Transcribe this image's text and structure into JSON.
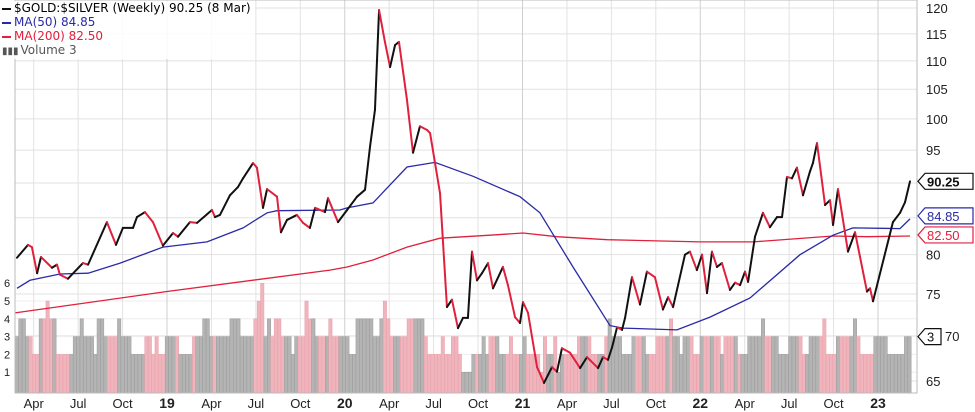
{
  "chart_data": {
    "type": "line",
    "title": "$GOLD:$SILVER (Weekly) 90.25 (8 Mar)",
    "x_units": "decimal year",
    "y_scale": "log",
    "ylim": [
      65,
      120
    ],
    "y_ticks": [
      "120",
      "115",
      "110",
      "105",
      "100",
      "95",
      "90",
      "85",
      "80",
      "75",
      "70",
      "65"
    ],
    "y_tick_values": [
      120,
      115,
      110,
      105,
      100,
      95,
      90,
      85,
      80,
      75,
      70,
      65
    ],
    "volume_ticks": [
      "1",
      "2",
      "3",
      "4",
      "5",
      "6"
    ],
    "volume_tick_values": [
      1,
      2,
      3,
      4,
      5,
      6
    ],
    "x_ticks": [
      {
        "label": "Apr",
        "t": 2018.25,
        "bold": false
      },
      {
        "label": "Jul",
        "t": 2018.5,
        "bold": false
      },
      {
        "label": "Oct",
        "t": 2018.75,
        "bold": false
      },
      {
        "label": "19",
        "t": 2019.0,
        "bold": true
      },
      {
        "label": "Apr",
        "t": 2019.25,
        "bold": false
      },
      {
        "label": "Jul",
        "t": 2019.5,
        "bold": false
      },
      {
        "label": "Oct",
        "t": 2019.75,
        "bold": false
      },
      {
        "label": "20",
        "t": 2020.0,
        "bold": true
      },
      {
        "label": "Apr",
        "t": 2020.25,
        "bold": false
      },
      {
        "label": "Jul",
        "t": 2020.5,
        "bold": false
      },
      {
        "label": "Oct",
        "t": 2020.75,
        "bold": false
      },
      {
        "label": "21",
        "t": 2021.0,
        "bold": true
      },
      {
        "label": "Apr",
        "t": 2021.25,
        "bold": false
      },
      {
        "label": "Jul",
        "t": 2021.5,
        "bold": false
      },
      {
        "label": "Oct",
        "t": 2021.75,
        "bold": false
      },
      {
        "label": "22",
        "t": 2022.0,
        "bold": true
      },
      {
        "label": "Apr",
        "t": 2022.25,
        "bold": false
      },
      {
        "label": "Jul",
        "t": 2022.5,
        "bold": false
      },
      {
        "label": "Oct",
        "t": 2022.75,
        "bold": false
      },
      {
        "label": "23",
        "t": 2023.0,
        "bold": true
      }
    ],
    "legend": {
      "price": "$GOLD:$SILVER (Weekly) 90.25 (8 Mar)",
      "ma50": "MA(50) 84.85",
      "ma200": "MA(200) 82.50",
      "volume": "Volume 3"
    },
    "last_tags": {
      "price": "90.25",
      "ma50": "84.85",
      "ma200": "82.50",
      "volume": "3"
    },
    "last_values": {
      "price": 90.25,
      "ma50": 84.85,
      "ma200": 82.5,
      "volume": 3
    },
    "colors": {
      "up": "#111111",
      "down": "#e0203c",
      "ma50": "#2a2aa8",
      "ma200": "#e0203c",
      "vol_up": "#b4b4b4",
      "vol_down": "#f0b4bc",
      "grid": "#e2e2e2"
    },
    "series": [
      {
        "name": "$GOLD:$SILVER",
        "points": [
          [
            2018.156,
            79.6
          ],
          [
            2018.218,
            81.3
          ],
          [
            2018.24,
            81.0
          ],
          [
            2018.269,
            77.6
          ],
          [
            2018.291,
            79.7
          ],
          [
            2018.353,
            78.3
          ],
          [
            2018.381,
            78.7
          ],
          [
            2018.398,
            77.4
          ],
          [
            2018.443,
            76.9
          ],
          [
            2018.527,
            78.9
          ],
          [
            2018.556,
            78.7
          ],
          [
            2018.662,
            84.4
          ],
          [
            2018.713,
            81.3
          ],
          [
            2018.752,
            83.6
          ],
          [
            2018.809,
            83.6
          ],
          [
            2018.831,
            85.1
          ],
          [
            2018.876,
            85.8
          ],
          [
            2018.921,
            84.4
          ],
          [
            2018.977,
            81.2
          ],
          [
            2019.034,
            82.9
          ],
          [
            2019.062,
            82.4
          ],
          [
            2019.129,
            84.4
          ],
          [
            2019.169,
            84.3
          ],
          [
            2019.253,
            86.1
          ],
          [
            2019.27,
            85.1
          ],
          [
            2019.298,
            85.4
          ],
          [
            2019.354,
            88.2
          ],
          [
            2019.399,
            89.4
          ],
          [
            2019.428,
            90.7
          ],
          [
            2019.484,
            93.0
          ],
          [
            2019.506,
            92.3
          ],
          [
            2019.54,
            86.4
          ],
          [
            2019.563,
            89.1
          ],
          [
            2019.619,
            88.0
          ],
          [
            2019.641,
            83.0
          ],
          [
            2019.675,
            84.7
          ],
          [
            2019.731,
            85.4
          ],
          [
            2019.765,
            84.3
          ],
          [
            2019.804,
            83.6
          ],
          [
            2019.833,
            86.4
          ],
          [
            2019.889,
            85.8
          ],
          [
            2019.906,
            87.8
          ],
          [
            2019.962,
            84.4
          ],
          [
            2020.013,
            86.1
          ],
          [
            2020.069,
            88.0
          ],
          [
            2020.114,
            89.0
          ],
          [
            2020.142,
            95.5
          ],
          [
            2020.17,
            101.5
          ],
          [
            2020.193,
            119.6
          ],
          [
            2020.226,
            113.5
          ],
          [
            2020.255,
            108.9
          ],
          [
            2020.283,
            112.9
          ],
          [
            2020.305,
            113.5
          ],
          [
            2020.35,
            103.2
          ],
          [
            2020.384,
            94.6
          ],
          [
            2020.423,
            98.8
          ],
          [
            2020.463,
            98.2
          ],
          [
            2020.48,
            97.7
          ],
          [
            2020.536,
            88.5
          ],
          [
            2020.575,
            73.4
          ],
          [
            2020.603,
            74.3
          ],
          [
            2020.637,
            70.9
          ],
          [
            2020.665,
            72.1
          ],
          [
            2020.693,
            72.1
          ],
          [
            2020.716,
            80.4
          ],
          [
            2020.744,
            76.7
          ],
          [
            2020.772,
            77.6
          ],
          [
            2020.806,
            78.9
          ],
          [
            2020.834,
            75.7
          ],
          [
            2020.89,
            78.4
          ],
          [
            2020.918,
            76.1
          ],
          [
            2020.958,
            72.2
          ],
          [
            2020.986,
            71.5
          ],
          [
            2021.003,
            74.0
          ],
          [
            2021.031,
            72.7
          ],
          [
            2021.082,
            66.5
          ],
          [
            2021.121,
            64.8
          ],
          [
            2021.166,
            66.5
          ],
          [
            2021.194,
            66.0
          ],
          [
            2021.222,
            68.6
          ],
          [
            2021.267,
            68.1
          ],
          [
            2021.324,
            66.4
          ],
          [
            2021.363,
            67.6
          ],
          [
            2021.425,
            66.4
          ],
          [
            2021.453,
            67.6
          ],
          [
            2021.481,
            67.3
          ],
          [
            2021.504,
            68.7
          ],
          [
            2021.532,
            71.0
          ],
          [
            2021.56,
            70.7
          ],
          [
            2021.577,
            72.1
          ],
          [
            2021.616,
            77.1
          ],
          [
            2021.661,
            73.7
          ],
          [
            2021.7,
            77.8
          ],
          [
            2021.745,
            77.1
          ],
          [
            2021.79,
            73.1
          ],
          [
            2021.819,
            74.6
          ],
          [
            2021.847,
            73.4
          ],
          [
            2021.914,
            80.0
          ],
          [
            2021.942,
            80.4
          ],
          [
            2021.981,
            78.0
          ],
          [
            2022.01,
            80.0
          ],
          [
            2022.038,
            75.1
          ],
          [
            2022.066,
            80.4
          ],
          [
            2022.094,
            78.4
          ],
          [
            2022.122,
            78.9
          ],
          [
            2022.167,
            75.5
          ],
          [
            2022.196,
            76.4
          ],
          [
            2022.224,
            76.1
          ],
          [
            2022.252,
            77.8
          ],
          [
            2022.269,
            76.5
          ],
          [
            2022.308,
            82.4
          ],
          [
            2022.353,
            85.7
          ],
          [
            2022.392,
            83.7
          ],
          [
            2022.432,
            85.1
          ],
          [
            2022.46,
            85.1
          ],
          [
            2022.488,
            90.9
          ],
          [
            2022.516,
            90.7
          ],
          [
            2022.544,
            92.3
          ],
          [
            2022.578,
            88.2
          ],
          [
            2022.617,
            91.7
          ],
          [
            2022.634,
            93.0
          ],
          [
            2022.657,
            96.1
          ],
          [
            2022.702,
            86.8
          ],
          [
            2022.73,
            87.5
          ],
          [
            2022.747,
            84.0
          ],
          [
            2022.775,
            89.1
          ],
          [
            2022.803,
            84.7
          ],
          [
            2022.831,
            80.4
          ],
          [
            2022.871,
            83.0
          ],
          [
            2022.938,
            75.3
          ],
          [
            2022.955,
            75.7
          ],
          [
            2022.972,
            74.1
          ],
          [
            2023.084,
            84.4
          ],
          [
            2023.124,
            85.7
          ],
          [
            2023.152,
            87.2
          ],
          [
            2023.18,
            90.25
          ]
        ]
      },
      {
        "name": "MA(50)",
        "points": [
          [
            2018.156,
            75.7
          ],
          [
            2018.229,
            76.7
          ],
          [
            2018.398,
            77.5
          ],
          [
            2018.556,
            77.6
          ],
          [
            2018.736,
            78.9
          ],
          [
            2018.977,
            81.0
          ],
          [
            2019.225,
            81.7
          ],
          [
            2019.428,
            83.6
          ],
          [
            2019.563,
            85.7
          ],
          [
            2019.619,
            86.0
          ],
          [
            2019.973,
            86.1
          ],
          [
            2020.013,
            86.4
          ],
          [
            2020.159,
            87.1
          ],
          [
            2020.35,
            92.4
          ],
          [
            2020.508,
            93.1
          ],
          [
            2020.722,
            91.0
          ],
          [
            2020.986,
            88.0
          ],
          [
            2021.098,
            85.7
          ],
          [
            2021.284,
            78.4
          ],
          [
            2021.492,
            71.2
          ],
          [
            2021.565,
            70.9
          ],
          [
            2021.869,
            70.7
          ],
          [
            2022.055,
            72.2
          ],
          [
            2022.28,
            74.5
          ],
          [
            2022.561,
            80.0
          ],
          [
            2022.747,
            82.6
          ],
          [
            2022.859,
            83.6
          ],
          [
            2023.124,
            83.5
          ],
          [
            2023.18,
            84.85
          ]
        ]
      },
      {
        "name": "MA(200)",
        "points": [
          [
            2018.145,
            72.7
          ],
          [
            2019.0,
            75.3
          ],
          [
            2019.917,
            78.0
          ],
          [
            2020.013,
            78.4
          ],
          [
            2020.159,
            79.3
          ],
          [
            2020.35,
            81.0
          ],
          [
            2020.536,
            82.2
          ],
          [
            2020.817,
            82.6
          ],
          [
            2021.003,
            82.9
          ],
          [
            2021.194,
            82.4
          ],
          [
            2021.475,
            82.0
          ],
          [
            2021.998,
            81.7
          ],
          [
            2022.297,
            81.7
          ],
          [
            2022.747,
            82.5
          ],
          [
            2022.938,
            82.4
          ],
          [
            2023.18,
            82.5
          ]
        ]
      }
    ],
    "volume": {
      "start": 2018.156,
      "weekly": "3443322445442222233433324433334333222233232233332222333443333334443333456343443332333544333343333322444443345433333444443222232233211122232333222322232222132231222223333222234333222333322233334332333223333332333322233334333322233332233334222333334322223333222223333322233"
    }
  }
}
